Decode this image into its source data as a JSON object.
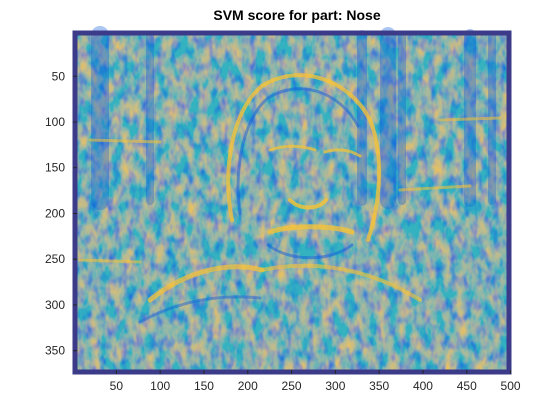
{
  "chart_data": {
    "type": "heatmap",
    "title": "SVM score for part: Nose",
    "xlabel": "",
    "ylabel": "",
    "xlim": [
      0.5,
      500.5
    ],
    "ylim": [
      0.5,
      375.5
    ],
    "y_reversed": true,
    "xticks": [
      50,
      100,
      150,
      200,
      250,
      300,
      350,
      400,
      450,
      500
    ],
    "yticks": [
      50,
      100,
      150,
      200,
      250,
      300,
      350
    ],
    "image_size": {
      "cols": 500,
      "rows": 375
    },
    "colormap": "parula",
    "colors": {
      "low": "#352a87",
      "mid_low": "#0f5cdd",
      "mid": "#0da5c6",
      "mid_high": "#5bbd9b",
      "high": "#f9c332",
      "max": "#f9fb0e",
      "frame_border": "#3b3b8a"
    }
  }
}
